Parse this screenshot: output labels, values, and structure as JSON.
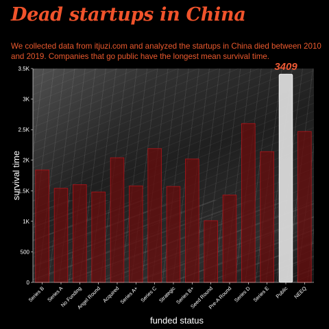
{
  "title": "Dead startups in China",
  "subtitle": "We collected data from itjuzi.com and analyzed the startups in China died between 2010 and 2019. Companies that go public have the longest mean survival time.",
  "chart_data": {
    "type": "bar",
    "categories": [
      "Series B",
      "Series A",
      "No Funding",
      "Angel Round",
      "Acquired",
      "Series A+",
      "Series C",
      "Strategic",
      "Series B+",
      "Seed Round",
      "Pre-A Round",
      "Series D",
      "Series E",
      "Public",
      "NEEQ"
    ],
    "values": [
      1840,
      1540,
      1600,
      1480,
      2040,
      1580,
      2190,
      1570,
      2020,
      1010,
      1430,
      2600,
      2140,
      3409,
      2470
    ],
    "highlight": "Public",
    "data_labels": [
      {
        "category": "Public",
        "text": "3409"
      }
    ],
    "xlabel": "funded status",
    "ylabel": "survival time",
    "ylim": [
      0,
      3500
    ],
    "yticks": [
      0,
      500,
      1000,
      1500,
      2000,
      2500,
      3000,
      3500
    ],
    "ytick_labels": [
      "0",
      "500",
      "1K",
      "1.5K",
      "2K",
      "2.5K",
      "3K",
      "3.5K"
    ],
    "grid": false,
    "colors": {
      "bar": "#6b0b0b",
      "bar_edge": "#b0141a",
      "highlight": "#d9d9d9",
      "label": "#ef5a35",
      "title": "#f0532b"
    }
  }
}
